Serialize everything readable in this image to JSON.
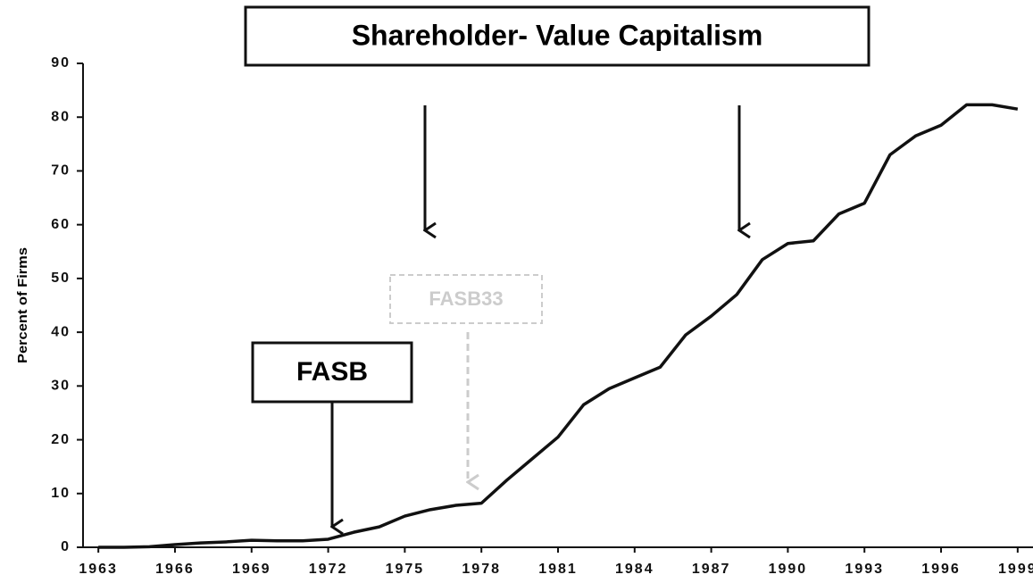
{
  "chart_data": {
    "type": "line",
    "y_label": "Percent of Firms",
    "annotations": [
      "Shareholder- Value Capitalism",
      "FASB",
      "FASB33"
    ],
    "x": [
      1963,
      1964,
      1965,
      1966,
      1967,
      1968,
      1969,
      1970,
      1971,
      1972,
      1973,
      1974,
      1975,
      1976,
      1977,
      1978,
      1979,
      1980,
      1981,
      1982,
      1983,
      1984,
      1985,
      1986,
      1987,
      1988,
      1989,
      1990,
      1991,
      1992,
      1993,
      1994,
      1995,
      1996,
      1997,
      1998,
      1999
    ],
    "series": [
      {
        "color": "#111111",
        "values": [
          0,
          0,
          0.1,
          0.5,
          0.8,
          1.0,
          1.3,
          1.2,
          1.2,
          1.5,
          2.8,
          3.8,
          5.8,
          7.0,
          7.8,
          8.2,
          12.5,
          16.5,
          20.5,
          26.5,
          29.5,
          31.5,
          33.5,
          39.5,
          43,
          47,
          53.5,
          56.5,
          57,
          62,
          64,
          73,
          76.5,
          78.5,
          82.3,
          82.3,
          81.5
        ]
      }
    ],
    "xlim": [
      1962.4,
      1999.6
    ],
    "xticks": [
      1963,
      1966,
      1969,
      1972,
      1975,
      1978,
      1981,
      1984,
      1987,
      1990,
      1993,
      1996,
      1999
    ],
    "ylim": [
      0,
      90
    ],
    "yticks": [
      0,
      10,
      20,
      30,
      40,
      50,
      60,
      70,
      80,
      90
    ]
  }
}
